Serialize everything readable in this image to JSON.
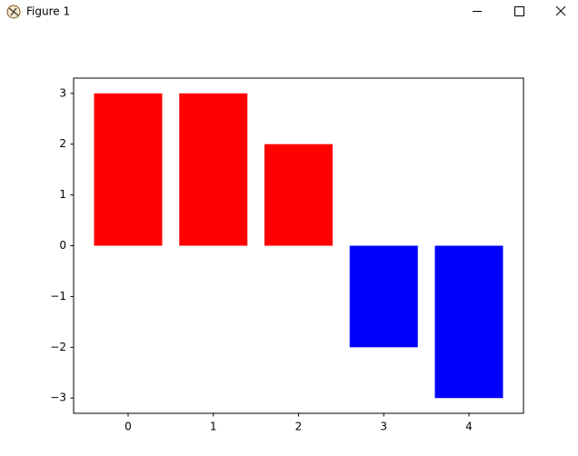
{
  "window": {
    "title": "Figure 1"
  },
  "chart_data": {
    "type": "bar",
    "x": [
      0,
      1,
      2,
      3,
      4
    ],
    "values": [
      3,
      3,
      2,
      -2,
      -3
    ],
    "colors": [
      "#ff0000",
      "#ff0000",
      "#ff0000",
      "#0000ff",
      "#0000ff"
    ],
    "bar_width": 0.8,
    "xlim": [
      -0.64,
      4.64
    ],
    "ylim": [
      -3.3,
      3.3
    ],
    "xticks": [
      0,
      1,
      2,
      3,
      4
    ],
    "yticks": [
      {
        "value": -3,
        "label": "−3"
      },
      {
        "value": -2,
        "label": "−2"
      },
      {
        "value": -1,
        "label": "−1"
      },
      0,
      1,
      2,
      3
    ],
    "grid": false
  }
}
